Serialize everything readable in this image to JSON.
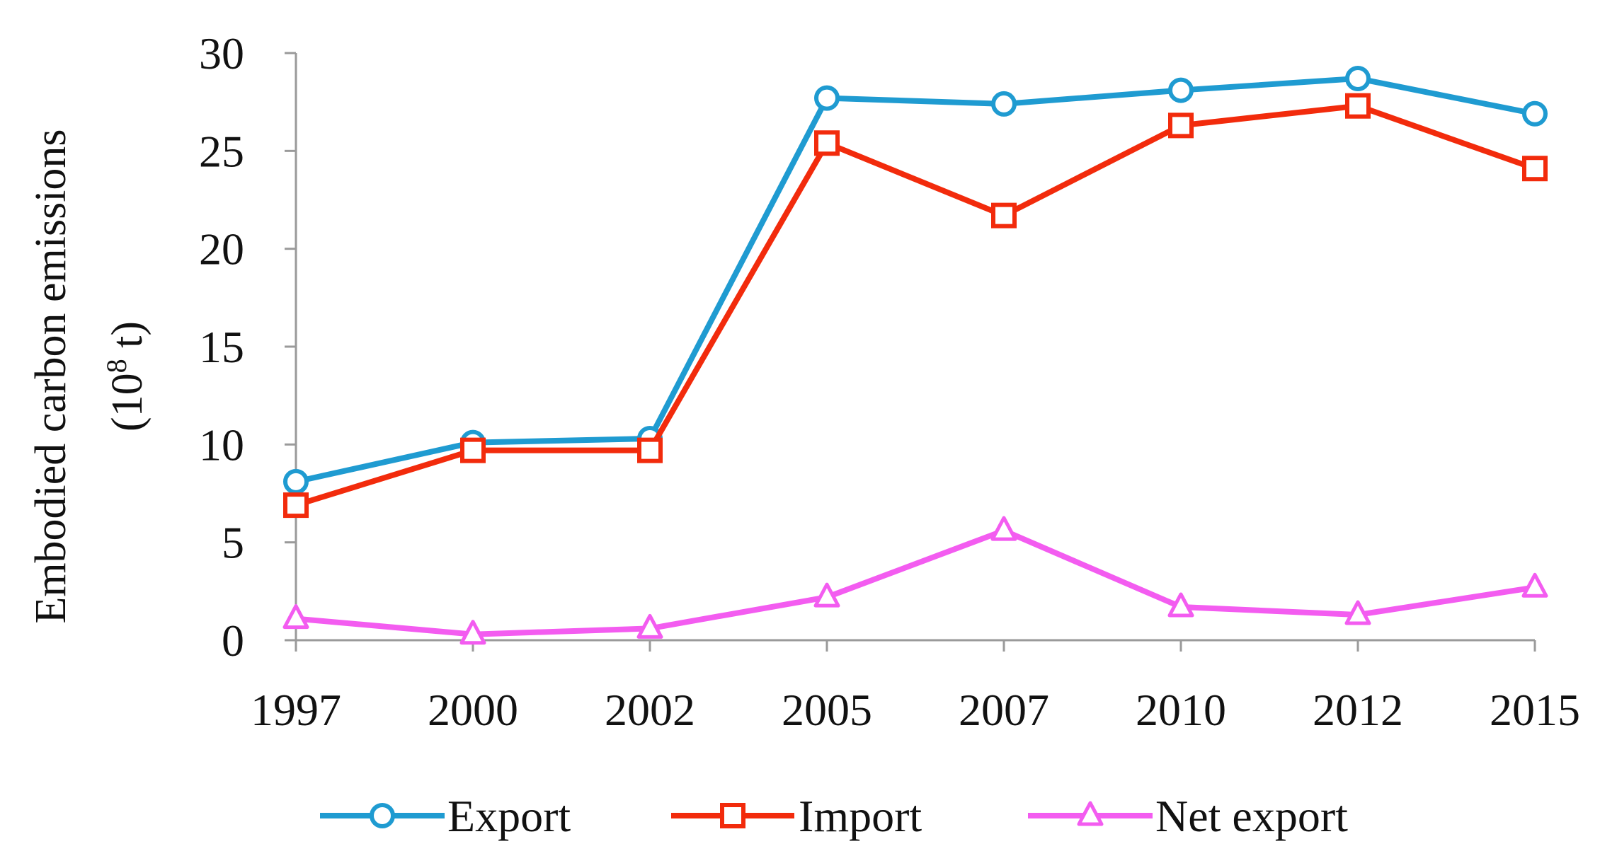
{
  "chart_data": {
    "type": "line",
    "categories": [
      "1997",
      "2000",
      "2002",
      "2005",
      "2007",
      "2010",
      "2012",
      "2015"
    ],
    "ylabel_line1": "Embodied carbon emissions",
    "ylabel_line2": "(10",
    "ylabel_sup": "8",
    "ylabel_line2_end": " t)",
    "ylim": [
      0,
      30
    ],
    "yticks": [
      0,
      5,
      10,
      15,
      20,
      25,
      30
    ],
    "grid": false,
    "legend_position": "bottom",
    "series": [
      {
        "name": "Export",
        "color": "#1f9bd1",
        "marker": "circle",
        "values": [
          8.1,
          10.1,
          10.3,
          27.7,
          27.4,
          28.1,
          28.7,
          26.9
        ]
      },
      {
        "name": "Import",
        "color": "#f22b0c",
        "marker": "square",
        "values": [
          6.9,
          9.7,
          9.7,
          25.4,
          21.7,
          26.3,
          27.3,
          24.1
        ]
      },
      {
        "name": "Net export",
        "color": "#f35cf0",
        "marker": "triangle",
        "values": [
          1.1,
          0.3,
          0.6,
          2.2,
          5.6,
          1.7,
          1.3,
          2.7
        ]
      }
    ]
  }
}
